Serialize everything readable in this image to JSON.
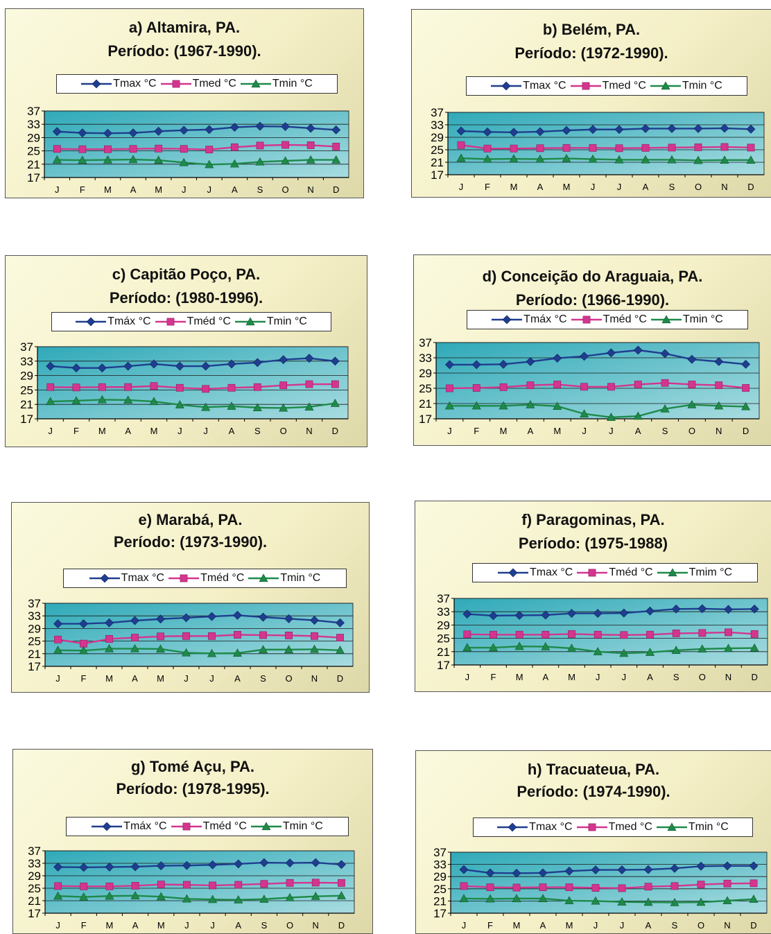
{
  "colors": {
    "tmax": "#1f3e8f",
    "tmed": "#d4358f",
    "tmin": "#1f8a4a",
    "plot_bg": "#2fa9b8",
    "plot_bg_light": "#a8dce0"
  },
  "chart_data": [
    {
      "type": "line",
      "id": "a",
      "title": "a) Altamira, PA.",
      "subtitle": "Período: (1967-1990).",
      "categories": [
        "J",
        "F",
        "M",
        "A",
        "M",
        "J",
        "J",
        "A",
        "S",
        "O",
        "N",
        "D"
      ],
      "yticks": [
        "37",
        "33",
        "29",
        "25",
        "21",
        "17"
      ],
      "ylim": [
        17,
        37
      ],
      "grid": true,
      "legend": "top",
      "series": [
        {
          "name": "Tmax °C",
          "key": "tmax",
          "values": [
            30.8,
            30.4,
            30.3,
            30.4,
            30.9,
            31.2,
            31.4,
            32.1,
            32.4,
            32.3,
            31.8,
            31.3
          ]
        },
        {
          "name": "Tmed °C",
          "key": "tmed",
          "values": [
            25.6,
            25.5,
            25.5,
            25.6,
            25.7,
            25.6,
            25.4,
            26.1,
            26.6,
            26.8,
            26.7,
            26.3
          ]
        },
        {
          "name": "Tmin °C",
          "key": "tmin",
          "values": [
            22.3,
            22.2,
            22.3,
            22.4,
            22.2,
            21.5,
            20.9,
            21.1,
            21.7,
            22.0,
            22.3,
            22.3
          ]
        }
      ]
    },
    {
      "type": "line",
      "id": "b",
      "title": "b) Belém, PA.",
      "subtitle": "Período: (1972-1990).",
      "categories": [
        "J",
        "F",
        "M",
        "A",
        "M",
        "J",
        "J",
        "A",
        "S",
        "O",
        "N",
        "D"
      ],
      "yticks": [
        "37",
        "33",
        "29",
        "25",
        "21",
        "17"
      ],
      "ylim": [
        17,
        37
      ],
      "grid": true,
      "legend": "top",
      "series": [
        {
          "name": "Tmax °C",
          "key": "tmax",
          "values": [
            31.0,
            30.7,
            30.6,
            30.8,
            31.2,
            31.5,
            31.5,
            31.8,
            31.8,
            31.8,
            31.9,
            31.6
          ]
        },
        {
          "name": "Tmed °C",
          "key": "tmed",
          "values": [
            26.5,
            25.4,
            25.4,
            25.5,
            25.6,
            25.6,
            25.5,
            25.6,
            25.7,
            25.8,
            25.9,
            25.7
          ]
        },
        {
          "name": "Tmin °C",
          "key": "tmin",
          "values": [
            22.3,
            22.0,
            22.1,
            22.0,
            22.2,
            22.0,
            21.8,
            21.8,
            21.8,
            21.6,
            21.7,
            21.7
          ]
        }
      ]
    },
    {
      "type": "line",
      "id": "c",
      "title": "c) Capitão Poço, PA.",
      "subtitle": "Período: (1980-1996).",
      "categories": [
        "J",
        "F",
        "M",
        "A",
        "M",
        "J",
        "J",
        "A",
        "S",
        "O",
        "N",
        "D"
      ],
      "yticks": [
        "37",
        "33",
        "29",
        "25",
        "21",
        "17"
      ],
      "ylim": [
        17,
        37
      ],
      "grid": true,
      "legend": "top",
      "series": [
        {
          "name": "Tmáx °C",
          "key": "tmax",
          "values": [
            31.6,
            31.1,
            31.1,
            31.6,
            32.2,
            31.6,
            31.6,
            32.2,
            32.6,
            33.4,
            33.8,
            33.0
          ]
        },
        {
          "name": "Tméd °C",
          "key": "tmed",
          "values": [
            25.8,
            25.7,
            25.8,
            25.8,
            26.1,
            25.6,
            25.3,
            25.6,
            25.8,
            26.3,
            26.6,
            26.6
          ]
        },
        {
          "name": "Tmin °C",
          "key": "tmin",
          "values": [
            21.8,
            22.0,
            22.3,
            22.2,
            21.8,
            20.9,
            20.2,
            20.5,
            20.1,
            20.0,
            20.3,
            21.3
          ]
        }
      ]
    },
    {
      "type": "line",
      "id": "d",
      "title": "d) Conceição do Araguaia, PA.",
      "subtitle": "Período: (1966-1990).",
      "categories": [
        "J",
        "F",
        "M",
        "A",
        "M",
        "J",
        "J",
        "A",
        "S",
        "O",
        "N",
        "D"
      ],
      "yticks": [
        "37",
        "33",
        "29",
        "25",
        "21",
        "17"
      ],
      "ylim": [
        17,
        37
      ],
      "grid": true,
      "legend": "top",
      "series": [
        {
          "name": "Tmáx °C",
          "key": "tmax",
          "values": [
            31.2,
            31.2,
            31.3,
            32.0,
            32.9,
            33.4,
            34.3,
            35.0,
            34.1,
            32.6,
            32.0,
            31.3
          ]
        },
        {
          "name": "Tméd °C",
          "key": "tmed",
          "values": [
            25.0,
            25.1,
            25.3,
            25.8,
            26.0,
            25.4,
            25.4,
            26.0,
            26.4,
            26.0,
            25.8,
            25.1
          ]
        },
        {
          "name": "Tmin °C",
          "key": "tmin",
          "values": [
            20.4,
            20.4,
            20.4,
            20.7,
            20.3,
            18.3,
            17.4,
            17.7,
            19.6,
            20.7,
            20.4,
            20.2
          ]
        }
      ]
    },
    {
      "type": "line",
      "id": "e",
      "title": "e) Marabá, PA.",
      "subtitle": "Período: (1973-1990).",
      "categories": [
        "J",
        "F",
        "M",
        "A",
        "M",
        "J",
        "J",
        "A",
        "S",
        "O",
        "N",
        "D"
      ],
      "yticks": [
        "37",
        "33",
        "29",
        "25",
        "21",
        "17"
      ],
      "ylim": [
        17,
        37
      ],
      "grid": true,
      "legend": "top",
      "series": [
        {
          "name": "Tmax °C",
          "key": "tmax",
          "values": [
            30.5,
            30.5,
            30.8,
            31.5,
            32.0,
            32.4,
            32.8,
            33.2,
            32.6,
            32.1,
            31.6,
            30.8
          ]
        },
        {
          "name": "Tméd °C",
          "key": "tmed",
          "values": [
            25.5,
            24.2,
            25.7,
            26.1,
            26.5,
            26.6,
            26.6,
            27.0,
            26.9,
            26.8,
            26.6,
            26.1
          ]
        },
        {
          "name": "Tmin °C",
          "key": "tmin",
          "values": [
            22.1,
            22.0,
            22.6,
            22.6,
            22.5,
            21.3,
            21.1,
            21.2,
            22.3,
            22.3,
            22.4,
            22.1
          ]
        }
      ]
    },
    {
      "type": "line",
      "id": "f",
      "title": "f) Paragominas, PA.",
      "subtitle": "Período: (1975-1988)",
      "categories": [
        "J",
        "F",
        "M",
        "A",
        "M",
        "J",
        "J",
        "A",
        "S",
        "O",
        "N",
        "D"
      ],
      "yticks": [
        "37",
        "33",
        "29",
        "25",
        "21",
        "17"
      ],
      "ylim": [
        17,
        37
      ],
      "grid": true,
      "legend": "top",
      "series": [
        {
          "name": "Tmax °C",
          "key": "tmax",
          "values": [
            32.3,
            31.8,
            31.9,
            32.0,
            32.5,
            32.5,
            32.6,
            33.2,
            33.8,
            33.9,
            33.7,
            33.8
          ]
        },
        {
          "name": "Tméd °C",
          "key": "tmed",
          "values": [
            26.2,
            26.1,
            26.1,
            26.1,
            26.3,
            26.1,
            26.0,
            26.1,
            26.5,
            26.6,
            26.8,
            26.3
          ]
        },
        {
          "name": "Tmim °C",
          "key": "tmin",
          "values": [
            22.2,
            22.2,
            22.6,
            22.5,
            22.0,
            21.0,
            20.5,
            20.8,
            21.4,
            21.8,
            22.0,
            22.1
          ]
        }
      ]
    },
    {
      "type": "line",
      "id": "g",
      "title": "g) Tomé Açu, PA.",
      "subtitle": "Período: (1978-1995).",
      "categories": [
        "J",
        "F",
        "M",
        "A",
        "M",
        "J",
        "J",
        "A",
        "S",
        "O",
        "N",
        "D"
      ],
      "yticks": [
        "37",
        "33",
        "29",
        "25",
        "21",
        "17"
      ],
      "ylim": [
        17,
        37
      ],
      "grid": true,
      "legend": "top",
      "series": [
        {
          "name": "Tmáx °C",
          "key": "tmax",
          "values": [
            31.8,
            31.7,
            31.8,
            31.9,
            32.2,
            32.3,
            32.5,
            32.8,
            33.2,
            33.1,
            33.2,
            32.6
          ]
        },
        {
          "name": "Tméd °C",
          "key": "tmed",
          "values": [
            25.7,
            25.6,
            25.6,
            25.8,
            26.2,
            26.1,
            25.9,
            26.1,
            26.4,
            26.7,
            26.8,
            26.7
          ]
        },
        {
          "name": "Tmin °C",
          "key": "tmin",
          "values": [
            22.5,
            22.2,
            22.5,
            22.6,
            22.3,
            21.6,
            21.4,
            21.3,
            21.5,
            22.0,
            22.4,
            22.6
          ]
        }
      ]
    },
    {
      "type": "line",
      "id": "h",
      "title": "h) Tracuateua, PA.",
      "subtitle": "Período: (1974-1990).",
      "categories": [
        "J",
        "F",
        "M",
        "A",
        "M",
        "J",
        "J",
        "A",
        "S",
        "O",
        "N",
        "D"
      ],
      "yticks": [
        "37",
        "33",
        "29",
        "25",
        "21",
        "17"
      ],
      "ylim": [
        17,
        37
      ],
      "grid": true,
      "legend": "top",
      "series": [
        {
          "name": "Tmax °C",
          "key": "tmax",
          "values": [
            31.3,
            30.2,
            30.1,
            30.2,
            30.8,
            31.2,
            31.2,
            31.3,
            31.7,
            32.4,
            32.5,
            32.5
          ]
        },
        {
          "name": "Tmed °C",
          "key": "tmed",
          "values": [
            25.9,
            25.5,
            25.4,
            25.5,
            25.5,
            25.3,
            25.2,
            25.7,
            25.9,
            26.4,
            26.7,
            26.8
          ]
        },
        {
          "name": "Tmin °C",
          "key": "tmin",
          "values": [
            21.8,
            21.7,
            21.8,
            21.8,
            21.1,
            21.0,
            20.7,
            20.6,
            20.5,
            20.6,
            21.1,
            21.6
          ]
        }
      ]
    }
  ]
}
